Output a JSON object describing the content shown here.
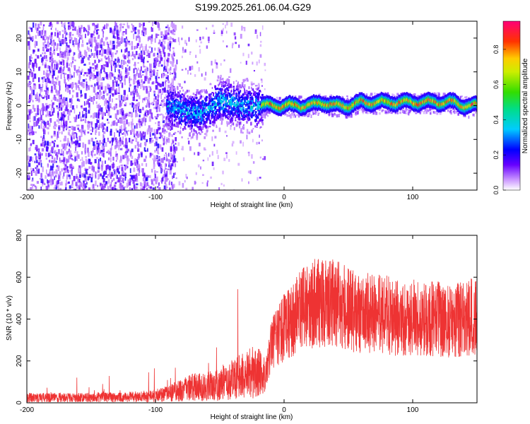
{
  "title": "S199.2025.261.06.04.G29",
  "chart_data": [
    {
      "type": "heatmap",
      "xlabel": "Height of straight line (km)",
      "ylabel": "Frequency (Hz)",
      "xlim": [
        -200,
        150
      ],
      "ylim": [
        -25,
        25
      ],
      "xticks": [
        -200,
        -100,
        0,
        100
      ],
      "yticks": [
        -20,
        -10,
        0,
        10,
        20
      ],
      "colorbar": {
        "label": "Normalized spectral amplitude",
        "range": [
          0,
          0.96
        ],
        "ticks": [
          0.0,
          0.2,
          0.4,
          0.6,
          0.8
        ],
        "colormap": "rainbow (white-violet-blue-cyan-green-yellow-red-magenta)"
      },
      "description_trace": {
        "x": [
          -90,
          -80,
          -70,
          -60,
          -50,
          -40,
          -30,
          -20,
          -10,
          0,
          10,
          20,
          30,
          40,
          50,
          60,
          70,
          80,
          90,
          100,
          110,
          120,
          130,
          140,
          150
        ],
        "center_freq": [
          0,
          -1,
          -2,
          -1,
          2,
          1,
          0,
          0,
          0,
          0,
          0,
          0,
          1,
          0,
          0,
          1,
          1,
          1,
          1,
          1,
          1,
          1,
          1,
          0,
          0
        ]
      }
    },
    {
      "type": "line",
      "xlabel": "Height of straight line (km)",
      "ylabel": "SNR (10 * v/v)",
      "xlim": [
        -200,
        150
      ],
      "ylim": [
        0,
        800
      ],
      "xticks": [
        -200,
        -100,
        0,
        100
      ],
      "yticks": [
        0,
        200,
        400,
        600,
        800
      ],
      "color": "#ee3333",
      "series": [
        {
          "name": "SNR",
          "x": [
            -200,
            -190,
            -180,
            -170,
            -160,
            -150,
            -140,
            -130,
            -120,
            -110,
            -100,
            -90,
            -80,
            -70,
            -60,
            -50,
            -40,
            -30,
            -20,
            -15,
            -10,
            0,
            10,
            20,
            30,
            40,
            50,
            60,
            70,
            80,
            90,
            100,
            110,
            120,
            130,
            140,
            150
          ],
          "values": [
            25,
            25,
            25,
            25,
            25,
            25,
            28,
            25,
            28,
            30,
            35,
            45,
            60,
            75,
            80,
            85,
            110,
            130,
            150,
            110,
            280,
            360,
            420,
            470,
            480,
            470,
            450,
            420,
            440,
            420,
            400,
            410,
            400,
            400,
            390,
            400,
            420
          ]
        }
      ]
    }
  ]
}
